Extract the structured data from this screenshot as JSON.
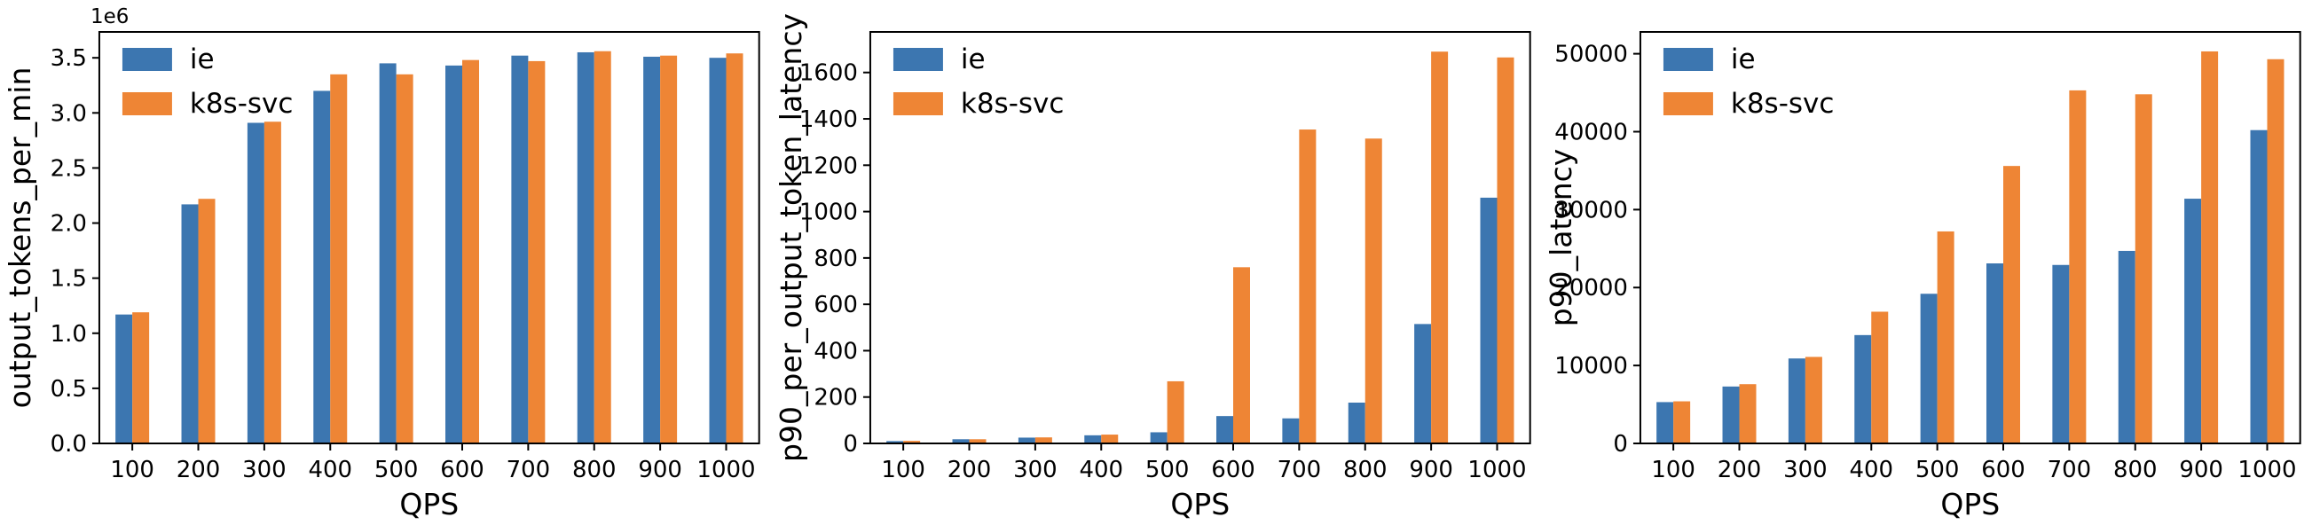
{
  "figure": {
    "background": "#ffffff",
    "series_names": [
      "ie",
      "k8s-svc"
    ],
    "colors": {
      "ie": "#3c76b0",
      "k8s_svc": "#ee8535",
      "axis": "#000000",
      "text": "#000000"
    }
  },
  "chart_data": [
    {
      "type": "bar",
      "title": "",
      "xlabel": "QPS",
      "ylabel": "output_tokens_per_min",
      "offset_text": "1e6",
      "categories": [
        "100",
        "200",
        "300",
        "400",
        "500",
        "600",
        "700",
        "800",
        "900",
        "1000"
      ],
      "series": [
        {
          "name": "ie",
          "color": "#3c76b0",
          "values": [
            1170000,
            2170000,
            2910000,
            3200000,
            3450000,
            3430000,
            3520000,
            3550000,
            3510000,
            3500000
          ]
        },
        {
          "name": "k8s-svc",
          "color": "#ee8535",
          "values": [
            1190000,
            2220000,
            2920000,
            3350000,
            3350000,
            3480000,
            3470000,
            3560000,
            3520000,
            3540000
          ]
        }
      ],
      "yticks": {
        "values": [
          0,
          500000,
          1000000,
          1500000,
          2000000,
          2500000,
          3000000,
          3500000
        ],
        "labels": [
          "0.0",
          "0.5",
          "1.0",
          "1.5",
          "2.0",
          "2.5",
          "3.0",
          "3.5"
        ]
      },
      "ylim": [
        0,
        3735000
      ],
      "legend_position": "upper-left",
      "grid": false
    },
    {
      "type": "bar",
      "title": "",
      "xlabel": "QPS",
      "ylabel": "p90_per_output_token_latency",
      "offset_text": "",
      "categories": [
        "100",
        "200",
        "300",
        "400",
        "500",
        "600",
        "700",
        "800",
        "900",
        "1000"
      ],
      "series": [
        {
          "name": "ie",
          "color": "#3c76b0",
          "values": [
            10,
            18,
            25,
            35,
            48,
            118,
            108,
            176,
            515,
            1060
          ]
        },
        {
          "name": "k8s-svc",
          "color": "#ee8535",
          "values": [
            11,
            18,
            26,
            38,
            268,
            760,
            1354,
            1315,
            1690,
            1665
          ]
        }
      ],
      "yticks": {
        "values": [
          0,
          200,
          400,
          600,
          800,
          1000,
          1200,
          1400,
          1600
        ],
        "labels": [
          "0",
          "200",
          "400",
          "600",
          "800",
          "1000",
          "1200",
          "1400",
          "1600"
        ]
      },
      "ylim": [
        0,
        1775
      ],
      "legend_position": "upper-left",
      "grid": false
    },
    {
      "type": "bar",
      "title": "",
      "xlabel": "QPS",
      "ylabel": "p90_latency",
      "offset_text": "",
      "categories": [
        "100",
        "200",
        "300",
        "400",
        "500",
        "600",
        "700",
        "800",
        "900",
        "1000"
      ],
      "series": [
        {
          "name": "ie",
          "color": "#3c76b0",
          "values": [
            5300,
            7300,
            10900,
            13900,
            19200,
            23100,
            22900,
            24700,
            31400,
            40200
          ]
        },
        {
          "name": "k8s-svc",
          "color": "#ee8535",
          "values": [
            5400,
            7600,
            11100,
            16900,
            27200,
            35600,
            45300,
            44800,
            50300,
            49300
          ]
        }
      ],
      "yticks": {
        "values": [
          0,
          10000,
          20000,
          30000,
          40000,
          50000
        ],
        "labels": [
          "0",
          "10000",
          "20000",
          "30000",
          "40000",
          "50000"
        ]
      },
      "ylim": [
        0,
        52800
      ],
      "legend_position": "upper-left",
      "grid": false
    }
  ]
}
